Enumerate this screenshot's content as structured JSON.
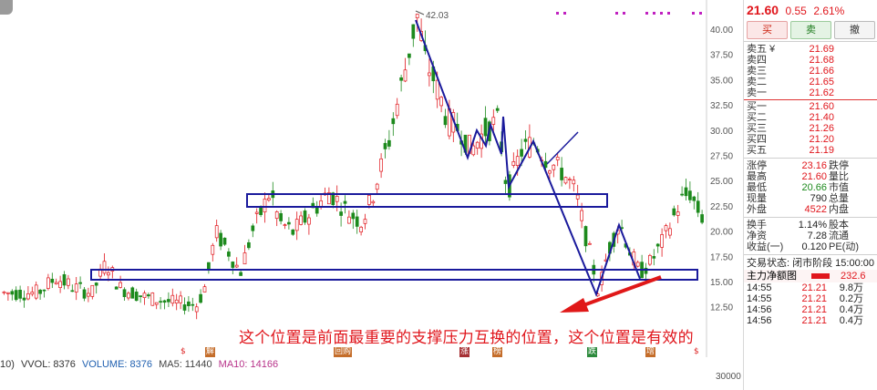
{
  "chart": {
    "peak_label": "42.03",
    "price_axis": [
      "40.00",
      "37.50",
      "35.00",
      "32.50",
      "30.00",
      "27.50",
      "25.00",
      "22.50",
      "20.00",
      "17.50",
      "15.00",
      "12.50"
    ],
    "annotation": "这个位置是前面最重要的支撑压力互换的位置，这个位置是有效的",
    "indicator": {
      "prefix": "10)",
      "vvol": "VVOL: 8376",
      "volume": "VOLUME: 8376",
      "ma5": "MA5: 11440",
      "ma10": "MA10: 14166"
    },
    "volume_axis": "30000",
    "markers": [
      {
        "text": "$",
        "kind": "dollar"
      },
      {
        "text": "解",
        "kind": "tag"
      },
      {
        "text": "回购",
        "kind": "tag"
      },
      {
        "text": "涨",
        "kind": "tag-r"
      },
      {
        "text": "榜",
        "kind": "tag"
      },
      {
        "text": "跌",
        "kind": "tag-g"
      },
      {
        "text": "增",
        "kind": "tag"
      },
      {
        "text": "$",
        "kind": "dollar"
      }
    ]
  },
  "quote": {
    "price": "21.60",
    "change": "0.55",
    "pct": "2.61%"
  },
  "trade_buttons": {
    "buy": "买",
    "sell": "卖",
    "cancel": "撤"
  },
  "orderbook": {
    "asks": [
      {
        "label": "卖五 ¥",
        "price": "21.69"
      },
      {
        "label": "卖四",
        "price": "21.68"
      },
      {
        "label": "卖三",
        "price": "21.66"
      },
      {
        "label": "卖二",
        "price": "21.65"
      },
      {
        "label": "卖一",
        "price": "21.62"
      }
    ],
    "bids": [
      {
        "label": "买一",
        "price": "21.60"
      },
      {
        "label": "买二",
        "price": "21.40"
      },
      {
        "label": "买三",
        "price": "21.26"
      },
      {
        "label": "买四",
        "price": "21.20"
      },
      {
        "label": "买五",
        "price": "21.19"
      }
    ]
  },
  "stats1": [
    {
      "l1": "涨停",
      "v1": "23.16",
      "c1": "red",
      "l2": "跌停"
    },
    {
      "l1": "最高",
      "v1": "21.60",
      "c1": "red",
      "l2": "量比"
    },
    {
      "l1": "最低",
      "v1": "20.66",
      "c1": "green",
      "l2": "市值"
    },
    {
      "l1": "现量",
      "v1": "790",
      "c1": "dark",
      "l2": "总量"
    },
    {
      "l1": "外盘",
      "v1": "4522",
      "c1": "red",
      "l2": "内盘"
    }
  ],
  "stats2": [
    {
      "l1": "换手",
      "v1": "1.14%",
      "c1": "dark",
      "l2": "股本"
    },
    {
      "l1": "净资",
      "v1": "7.28",
      "c1": "dark",
      "l2": "流通"
    },
    {
      "l1": "收益(一)",
      "v1": "0.120",
      "c1": "dark",
      "l2": "PE(动)"
    }
  ],
  "trade_status": "交易状态: 闭市阶段 15:00:00",
  "main_flow": {
    "label": "主力净额",
    "suffix": "图",
    "value": "232.6"
  },
  "ticks": [
    {
      "time": "14:55",
      "price": "21.21",
      "vol": "9.8万"
    },
    {
      "time": "14:55",
      "price": "21.21",
      "vol": "0.2万"
    },
    {
      "time": "14:56",
      "price": "21.21",
      "vol": "0.4万"
    },
    {
      "time": "14:56",
      "price": "21.21",
      "vol": "0.4万"
    }
  ],
  "colors": {
    "up": "#e0161c",
    "down": "#1d8a1d",
    "drawing": "#1a1a9c",
    "arrow": "#e01818"
  }
}
